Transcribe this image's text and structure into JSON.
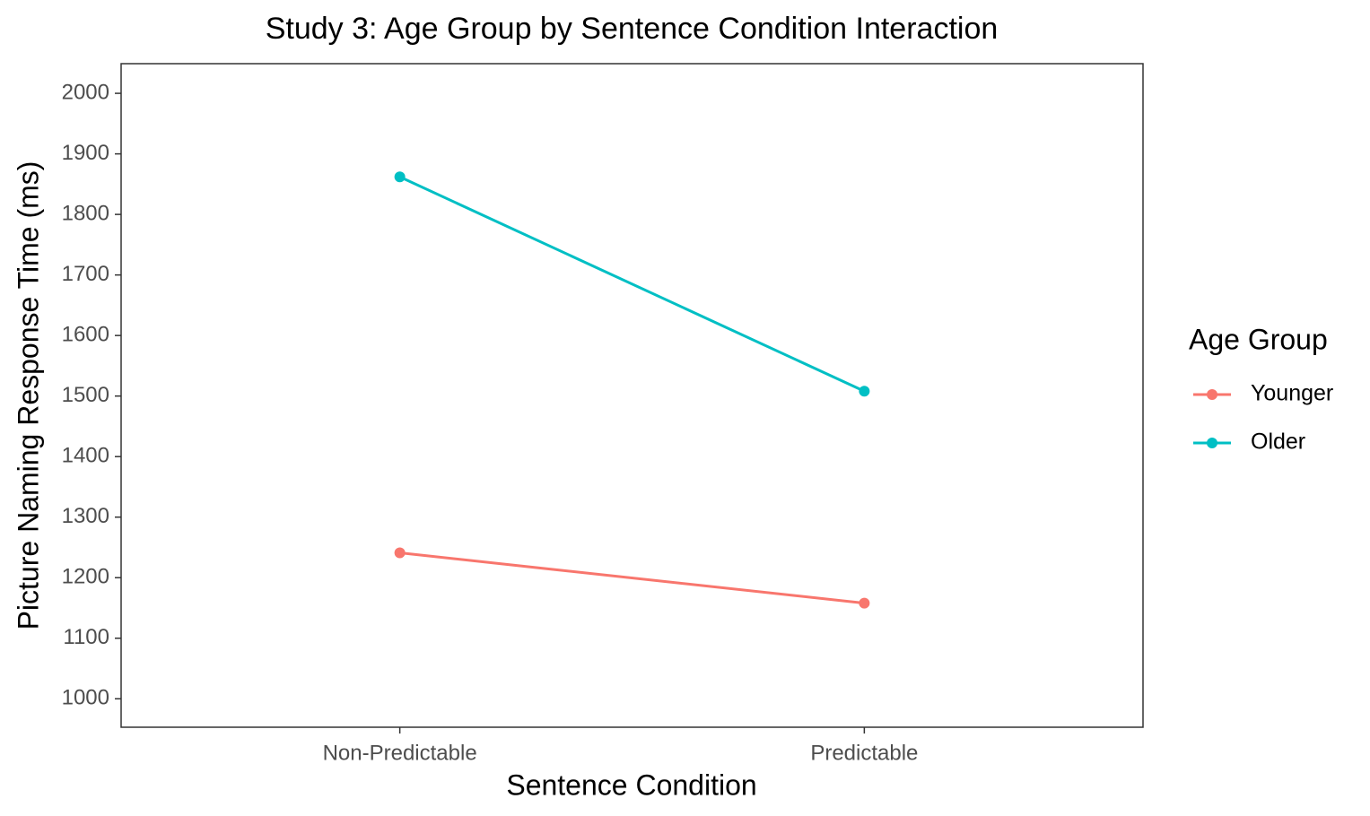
{
  "chart_data": {
    "type": "line",
    "title": "Study 3: Age Group by Sentence Condition Interaction",
    "x_label": "Sentence Condition",
    "y_label": "Picture Naming Response Time (ms)",
    "legend_title": "Age Group",
    "legend_position": "right",
    "categories": [
      "Non-Predictable",
      "Predictable"
    ],
    "series": [
      {
        "name": "Younger",
        "color": "#f8766d",
        "values": [
          1241,
          1158
        ]
      },
      {
        "name": "Older",
        "color": "#00bfc4",
        "values": [
          1862,
          1508
        ]
      }
    ],
    "ylim": [
      953,
      2049
    ],
    "yticks": [
      1000,
      1100,
      1200,
      1300,
      1400,
      1500,
      1600,
      1700,
      1800,
      1900,
      2000
    ],
    "grid": false
  }
}
